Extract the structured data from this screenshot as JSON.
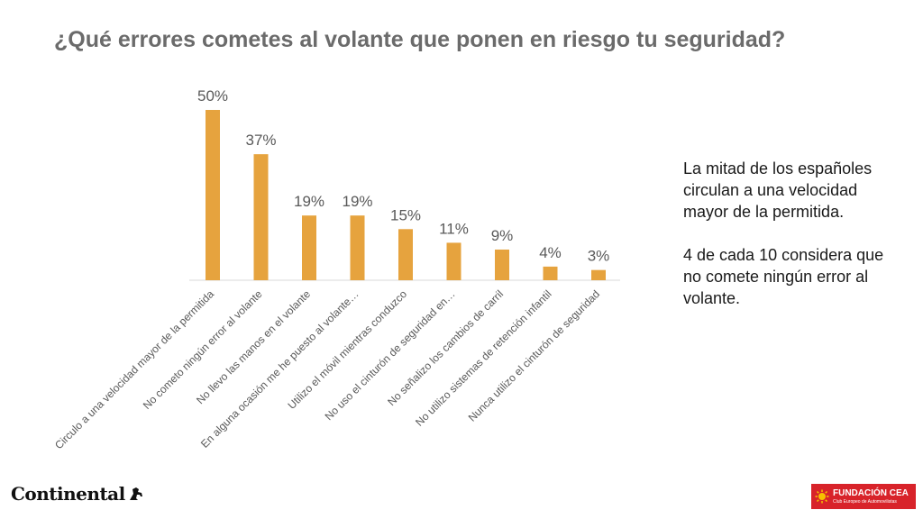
{
  "header": {
    "title": "¿Qué errores cometes al volante que ponen en riesgo tu seguridad?"
  },
  "chart_data": {
    "type": "bar",
    "title": "",
    "xlabel": "",
    "ylabel": "",
    "ylim": [
      0,
      50
    ],
    "grid": false,
    "color": "#e6a33e",
    "categories": [
      "Circulo a una velocidad mayor de la permitida",
      "No cometo ningún error al volante",
      "No llevo las manos en el volante",
      "En alguna ocasión me he puesto al volante…",
      "Utilizo el móvil mientras conduzco",
      "No uso el cinturón de seguridad en…",
      "No señalizo los cambios de carril",
      "No utilizo sistemas de retención infantil",
      "Nunca utilizo el cinturón de seguridad"
    ],
    "values": [
      50,
      37,
      19,
      19,
      15,
      11,
      9,
      4,
      3
    ],
    "data_labels": [
      "50%",
      "37%",
      "19%",
      "19%",
      "15%",
      "11%",
      "9%",
      "4%",
      "3%"
    ]
  },
  "sidebar_note": {
    "paragraph1": "La mitad de los españoles circulan a una velocidad mayor de la permitida.",
    "paragraph2": "4 de cada 10 considera que no comete ningún error al volante."
  },
  "logos": {
    "left_brand": "Continental",
    "right_line1": "FUNDACIÓN CEA",
    "right_line2": "Club Europeo de Automovilistas"
  }
}
